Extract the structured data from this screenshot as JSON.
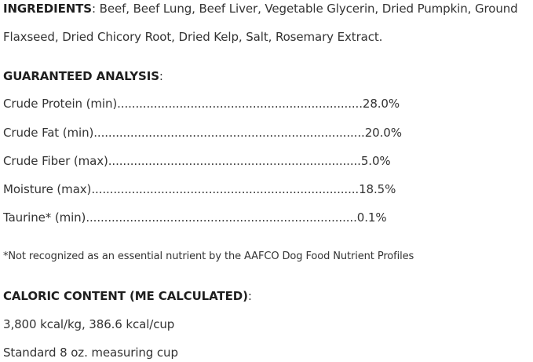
{
  "ingredients": {
    "label": "INGREDIENTS",
    "sep": ":",
    "line1": " Beef, Beef Lung, Beef Liver, Vegetable Glycerin, Dried Pumpkin, Ground",
    "line2": "Flaxseed, Dried Chicory Root, Dried Kelp, Salt, Rosemary Extract."
  },
  "analysis": {
    "label": "GUARANTEED ANALYSIS",
    "sep": ":",
    "rows": [
      {
        "name": "Crude Protein (min)",
        "dots": "...................................................................",
        "value": "28.0%"
      },
      {
        "name": "Crude Fat (min)",
        "dots": "..........................................................................",
        "value": "20.0%"
      },
      {
        "name": "Crude Fiber (max)",
        "dots": ".....................................................................",
        "value": "5.0%"
      },
      {
        "name": "Moisture (max)",
        "dots": ".........................................................................",
        "value": "18.5%"
      },
      {
        "name": "Taurine* (min)",
        "dots": "..........................................................................",
        "value": "0.1%"
      }
    ]
  },
  "footnote": "*Not recognized as an essential nutrient by the AAFCO Dog Food Nutrient Profiles",
  "caloric": {
    "label": "CALORIC CONTENT (ME CALCULATED)",
    "sep": ":",
    "line1": "3,800 kcal/kg, 386.6 kcal/cup",
    "line2": "Standard 8 oz. measuring cup"
  }
}
